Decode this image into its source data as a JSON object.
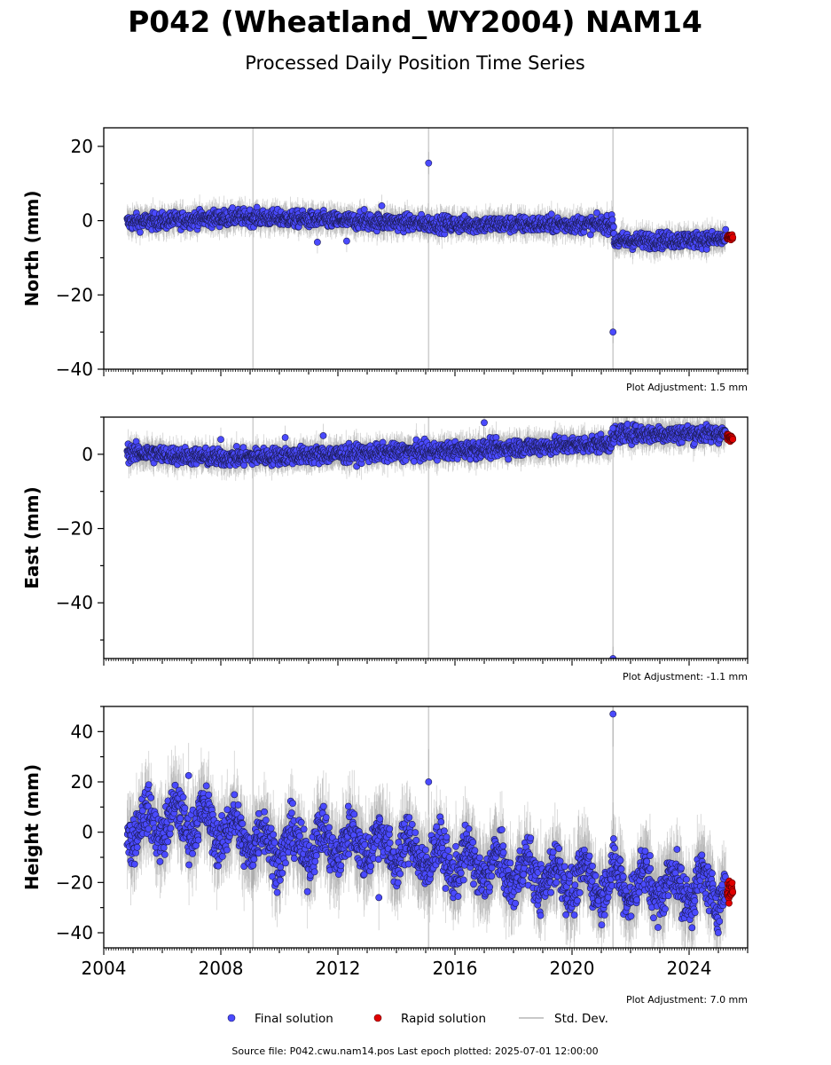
{
  "title": "P042 (Wheatland_WY2004) NAM14",
  "subtitle": "Processed Daily Position Time Series",
  "legend": {
    "placement": "bottom-center",
    "items": [
      {
        "label": "Final solution",
        "color": "#4a4aff"
      },
      {
        "label": "Rapid solution",
        "color": "#e00000"
      },
      {
        "label": "Std. Dev.",
        "color": "#c8c8c8"
      }
    ]
  },
  "footer": "Source file: P042.cwu.nam14.pos  Last epoch plotted: 2025-07-01 12:00:00",
  "chart_data": [
    {
      "type": "scatter",
      "ylabel": "North (mm)",
      "adjustment_note": "Plot Adjustment: 1.5 mm",
      "xlim": [
        2004.0,
        2026.0
      ],
      "ylim": [
        -40,
        25
      ],
      "yticks": [
        -40,
        -20,
        0,
        20
      ],
      "vlines": [
        2009.1,
        2015.1,
        2021.4
      ],
      "final_series": {
        "name": "Final solution",
        "start": 2004.8,
        "end": 2025.25,
        "trend": [
          [
            2004.8,
            -0.5
          ],
          [
            2008.8,
            1.0
          ],
          [
            2012.0,
            0.0
          ],
          [
            2016.0,
            -1.0
          ],
          [
            2021.4,
            -1.0
          ],
          [
            2021.45,
            -5.5
          ],
          [
            2025.25,
            -5.0
          ]
        ],
        "noise": 1.5
      },
      "rapid_series": {
        "name": "Rapid solution",
        "start": 2025.3,
        "end": 2025.5,
        "level": -4.5,
        "noise": 0.6
      },
      "outliers": [
        [
          2015.1,
          15.5
        ],
        [
          2021.4,
          -30.0
        ],
        [
          2011.3,
          -5.8
        ],
        [
          2012.3,
          -5.5
        ],
        [
          2012.9,
          3.0
        ],
        [
          2013.5,
          4.0
        ]
      ],
      "ytick_labels": [
        "−40",
        "−20",
        "0",
        "20"
      ]
    },
    {
      "type": "scatter",
      "ylabel": "East (mm)",
      "adjustment_note": "Plot Adjustment: -1.1 mm",
      "xlim": [
        2004.0,
        2026.0
      ],
      "ylim": [
        -55,
        10
      ],
      "yticks": [
        -40,
        -20,
        0
      ],
      "vlines": [
        2009.1,
        2015.1,
        2021.4
      ],
      "final_series": {
        "name": "Final solution",
        "start": 2004.8,
        "end": 2025.25,
        "trend": [
          [
            2004.8,
            0.5
          ],
          [
            2008.0,
            -1.0
          ],
          [
            2012.0,
            0.0
          ],
          [
            2016.0,
            1.0
          ],
          [
            2021.4,
            3.0
          ],
          [
            2021.45,
            5.5
          ],
          [
            2025.25,
            5.5
          ]
        ],
        "noise": 1.6
      },
      "rapid_series": {
        "name": "Rapid solution",
        "start": 2025.3,
        "end": 2025.5,
        "level": 4.5,
        "noise": 0.6
      },
      "outliers": [
        [
          2021.4,
          -55.0
        ],
        [
          2017.0,
          8.5
        ],
        [
          2021.4,
          7.0
        ],
        [
          2010.2,
          4.5
        ],
        [
          2011.5,
          5.0
        ],
        [
          2008.0,
          4.0
        ]
      ],
      "ytick_labels": [
        "−40",
        "−20",
        "0"
      ]
    },
    {
      "type": "scatter",
      "ylabel": "Height (mm)",
      "adjustment_note": "Plot Adjustment: 7.0 mm",
      "xlim": [
        2004.0,
        2026.0
      ],
      "ylim": [
        -46,
        50
      ],
      "yticks": [
        -40,
        -20,
        0,
        20,
        40
      ],
      "vlines": [
        2009.1,
        2015.1,
        2021.4
      ],
      "xticks": [
        2004,
        2008,
        2012,
        2016,
        2020,
        2024
      ],
      "final_series": {
        "name": "Final solution",
        "start": 2004.8,
        "end": 2025.25,
        "trend": [
          [
            2004.8,
            2.0
          ],
          [
            2007.0,
            5.0
          ],
          [
            2010.0,
            -6.0
          ],
          [
            2013.0,
            -4.0
          ],
          [
            2016.0,
            -12.0
          ],
          [
            2020.0,
            -19.0
          ],
          [
            2025.25,
            -23.0
          ]
        ],
        "noise": 6.5,
        "seasonal_amplitude": 6.0
      },
      "rapid_series": {
        "name": "Rapid solution",
        "start": 2025.3,
        "end": 2025.5,
        "level": -23.0,
        "noise": 3.0
      },
      "outliers": [
        [
          2021.4,
          47.0
        ],
        [
          2015.1,
          20.0
        ],
        [
          2006.9,
          22.5
        ],
        [
          2013.4,
          -26.0
        ],
        [
          2024.1,
          -38.0
        ]
      ],
      "ytick_labels": [
        "−40",
        "−20",
        "0",
        "20",
        "40"
      ],
      "xtick_labels": [
        "2004",
        "2008",
        "2012",
        "2016",
        "2020",
        "2024"
      ]
    }
  ]
}
